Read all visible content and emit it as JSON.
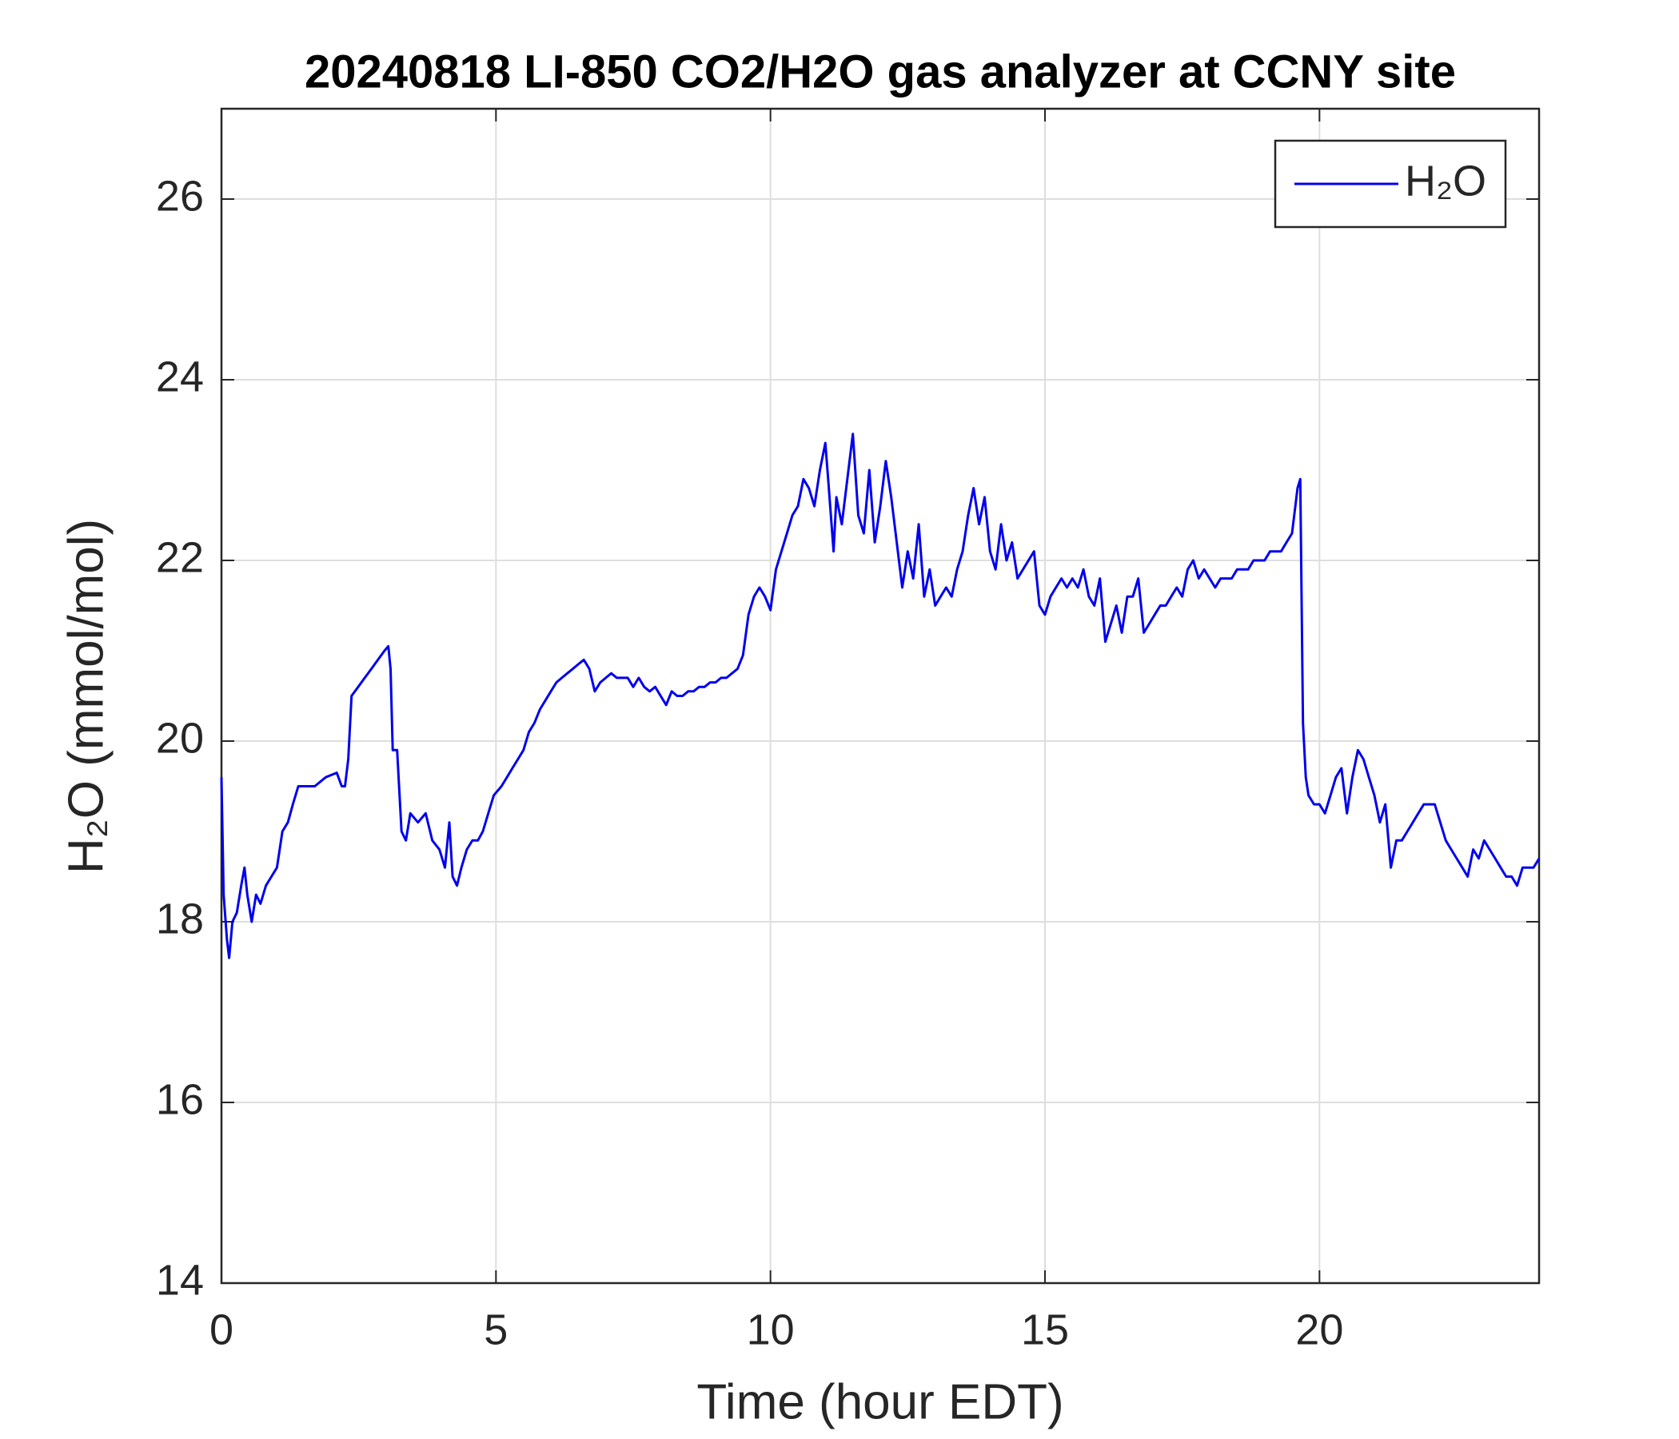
{
  "chart_data": {
    "type": "line",
    "title": "20240818 LI-850 CO2/H2O gas analyzer at CCNY site",
    "xlabel": "Time (hour EDT)",
    "ylabel": "H₂O (mmol/mol)",
    "xlim": [
      0,
      24
    ],
    "ylim": [
      14,
      27
    ],
    "xticks": [
      0,
      5,
      10,
      15,
      20
    ],
    "yticks": [
      14,
      16,
      18,
      20,
      22,
      24,
      26
    ],
    "grid": true,
    "legend": "upper right",
    "x": [
      0,
      0.04,
      0.1,
      0.14,
      0.2,
      0.28,
      0.36,
      0.42,
      0.47,
      0.55,
      0.63,
      0.71,
      0.81,
      0.91,
      1.01,
      1.11,
      1.21,
      1.3,
      1.4,
      1.5,
      1.7,
      1.9,
      2.1,
      2.19,
      2.25,
      2.31,
      2.37,
      2.49,
      2.61,
      2.73,
      2.85,
      2.97,
      3.04,
      3.08,
      3.12,
      3.2,
      3.28,
      3.36,
      3.44,
      3.58,
      3.72,
      3.84,
      3.97,
      4.07,
      4.15,
      4.21,
      4.29,
      4.37,
      4.47,
      4.57,
      4.67,
      4.76,
      4.86,
      4.96,
      5.1,
      5.2,
      5.3,
      5.4,
      5.5,
      5.6,
      5.7,
      5.8,
      5.9,
      6.0,
      6.1,
      6.2,
      6.3,
      6.4,
      6.5,
      6.6,
      6.7,
      6.8,
      6.9,
      7.0,
      7.1,
      7.2,
      7.3,
      7.4,
      7.5,
      7.6,
      7.7,
      7.8,
      7.9,
      8.0,
      8.1,
      8.2,
      8.3,
      8.4,
      8.5,
      8.6,
      8.7,
      8.8,
      8.9,
      9.0,
      9.1,
      9.2,
      9.3,
      9.4,
      9.5,
      9.6,
      9.7,
      9.8,
      9.9,
      10.0,
      10.1,
      10.2,
      10.3,
      10.4,
      10.5,
      10.6,
      10.7,
      10.8,
      10.9,
      11.0,
      11.05,
      11.15,
      11.2,
      11.3,
      11.4,
      11.5,
      11.6,
      11.7,
      11.8,
      11.9,
      12.0,
      12.1,
      12.2,
      12.3,
      12.4,
      12.5,
      12.6,
      12.7,
      12.8,
      12.9,
      13.0,
      13.1,
      13.2,
      13.3,
      13.4,
      13.5,
      13.6,
      13.7,
      13.8,
      13.9,
      14.0,
      14.1,
      14.2,
      14.3,
      14.4,
      14.5,
      14.6,
      14.7,
      14.8,
      14.9,
      15.0,
      15.1,
      15.2,
      15.3,
      15.4,
      15.5,
      15.6,
      15.7,
      15.8,
      15.9,
      16.0,
      16.1,
      16.2,
      16.3,
      16.4,
      16.5,
      16.6,
      16.7,
      16.8,
      16.9,
      17.0,
      17.1,
      17.2,
      17.3,
      17.4,
      17.5,
      17.6,
      17.7,
      17.8,
      17.9,
      18.0,
      18.1,
      18.2,
      18.3,
      18.4,
      18.5,
      18.6,
      18.7,
      18.8,
      18.9,
      19.0,
      19.1,
      19.2,
      19.3,
      19.4,
      19.5,
      19.6,
      19.65,
      19.7,
      19.75,
      19.8,
      19.9,
      20.0,
      20.1,
      20.2,
      20.3,
      20.4,
      20.5,
      20.6,
      20.7,
      20.8,
      20.9,
      21.0,
      21.1,
      21.2,
      21.3,
      21.4,
      21.5,
      21.6,
      21.7,
      21.8,
      21.9,
      22.0,
      22.1,
      22.2,
      22.3,
      22.4,
      22.5,
      22.6,
      22.7,
      22.8,
      22.9,
      23.0,
      23.1,
      23.2,
      23.3,
      23.4,
      23.5,
      23.6,
      23.7,
      23.8,
      23.9,
      24.0
    ],
    "series": [
      {
        "name": "H₂O",
        "color": "#0000ee",
        "values": [
          19.6,
          18.3,
          17.8,
          17.6,
          18.0,
          18.1,
          18.4,
          18.6,
          18.3,
          18.0,
          18.3,
          18.2,
          18.4,
          18.5,
          18.6,
          19.0,
          19.1,
          19.3,
          19.5,
          19.5,
          19.5,
          19.6,
          19.65,
          19.5,
          19.5,
          19.8,
          20.5,
          20.6,
          20.7,
          20.8,
          20.9,
          21.0,
          21.05,
          20.8,
          19.9,
          19.9,
          19.0,
          18.9,
          19.2,
          19.1,
          19.2,
          18.9,
          18.8,
          18.6,
          19.1,
          18.5,
          18.4,
          18.6,
          18.8,
          18.9,
          18.9,
          19.0,
          19.2,
          19.4,
          19.5,
          19.6,
          19.7,
          19.8,
          19.9,
          20.1,
          20.2,
          20.35,
          20.45,
          20.55,
          20.65,
          20.7,
          20.75,
          20.8,
          20.85,
          20.9,
          20.8,
          20.55,
          20.65,
          20.7,
          20.75,
          20.7,
          20.7,
          20.7,
          20.6,
          20.7,
          20.6,
          20.55,
          20.6,
          20.5,
          20.4,
          20.55,
          20.5,
          20.5,
          20.55,
          20.55,
          20.6,
          20.6,
          20.65,
          20.65,
          20.7,
          20.7,
          20.75,
          20.8,
          20.95,
          21.4,
          21.6,
          21.7,
          21.6,
          21.45,
          21.9,
          22.1,
          22.3,
          22.5,
          22.6,
          22.9,
          22.8,
          22.6,
          23.0,
          23.3,
          22.9,
          22.1,
          22.7,
          22.4,
          22.9,
          23.4,
          22.5,
          22.3,
          23.0,
          22.2,
          22.6,
          23.1,
          22.7,
          22.2,
          21.7,
          22.1,
          21.8,
          22.4,
          21.6,
          21.9,
          21.5,
          21.6,
          21.7,
          21.6,
          21.9,
          22.1,
          22.5,
          22.8,
          22.4,
          22.7,
          22.1,
          21.9,
          22.4,
          22.0,
          22.2,
          21.8,
          21.9,
          22.0,
          22.1,
          21.5,
          21.4,
          21.6,
          21.7,
          21.8,
          21.7,
          21.8,
          21.7,
          21.9,
          21.6,
          21.5,
          21.8,
          21.1,
          21.3,
          21.5,
          21.2,
          21.6,
          21.6,
          21.8,
          21.2,
          21.3,
          21.4,
          21.5,
          21.5,
          21.6,
          21.7,
          21.6,
          21.9,
          22.0,
          21.8,
          21.9,
          21.8,
          21.7,
          21.8,
          21.8,
          21.8,
          21.9,
          21.9,
          21.9,
          22.0,
          22.0,
          22.0,
          22.1,
          22.1,
          22.1,
          22.2,
          22.3,
          22.8,
          22.9,
          20.2,
          19.6,
          19.4,
          19.3,
          19.3,
          19.2,
          19.4,
          19.6,
          19.7,
          19.2,
          19.6,
          19.9,
          19.8,
          19.6,
          19.4,
          19.1,
          19.3,
          18.6,
          18.9,
          18.9,
          19.0,
          19.1,
          19.2,
          19.3,
          19.3,
          19.3,
          19.1,
          18.9,
          18.8,
          18.7,
          18.6,
          18.5,
          18.8,
          18.7,
          18.9,
          18.8,
          18.7,
          18.6,
          18.5,
          18.5,
          18.4,
          18.6,
          18.6,
          18.6,
          18.7
        ]
      }
    ]
  }
}
